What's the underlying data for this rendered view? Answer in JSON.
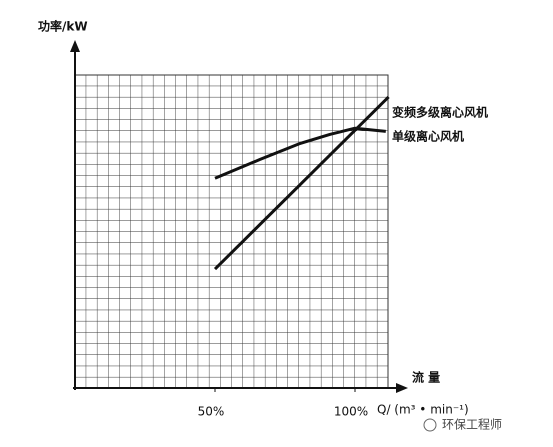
{
  "chart_data": {
    "type": "line",
    "ylabel": "功率/kW",
    "xlabel": "流 量",
    "xunit": "Q/ (m³ • min⁻¹)",
    "xlim": [
      0,
      112
    ],
    "ylim": [
      0,
      100
    ],
    "xticks": [
      {
        "value": 50,
        "label": "50%"
      },
      {
        "value": 100,
        "label": "100%"
      }
    ],
    "grid": true,
    "series": [
      {
        "name": "变频多级离心风机",
        "color": "#111111",
        "x": [
          50,
          112
        ],
        "values": [
          38,
          93
        ]
      },
      {
        "name": "单级离心风机",
        "color": "#111111",
        "x": [
          50,
          66,
          80,
          91,
          100,
          111
        ],
        "values": [
          67,
          73,
          78,
          81,
          83,
          82
        ]
      }
    ],
    "watermark": "环保工程师"
  }
}
